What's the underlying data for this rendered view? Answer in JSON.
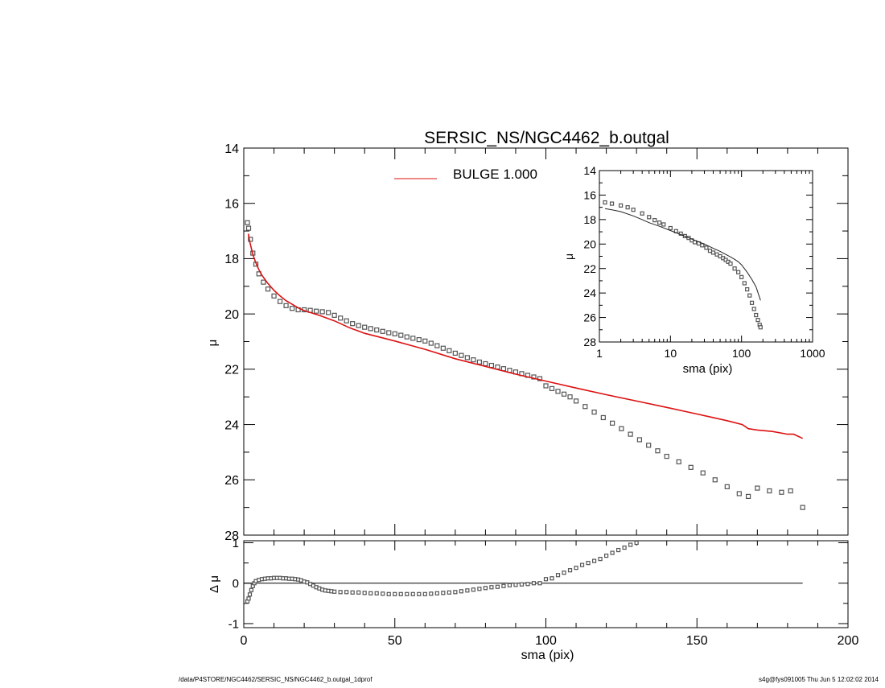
{
  "footer": {
    "left": "/data/P4STORE/NGC4462/SERSIC_NS/NGC4462_b.outgal_1dprof",
    "right": "s4g@fys091005  Thu Jun  5 12:02:02 2014"
  },
  "chart_data": [
    {
      "id": "main",
      "type": "scatter",
      "title": "SERSIC_NS/NGC4462_b.outgal",
      "xlabel": "",
      "ylabel": "μ",
      "xlim": [
        0,
        200
      ],
      "ylim": [
        28,
        14
      ],
      "y_inverted": true,
      "xticks": [
        0,
        50,
        100,
        150,
        200
      ],
      "yticks": [
        14,
        16,
        18,
        20,
        22,
        24,
        26,
        28
      ],
      "yticklabels": [
        "14",
        "16",
        "18",
        "20",
        "22",
        "24",
        "26",
        "28"
      ],
      "legend": {
        "placement": "top-center",
        "entries": [
          {
            "label": "BULGE  1.000",
            "color": "#dd1111"
          }
        ]
      },
      "series": [
        {
          "name": "",
          "kind": "points",
          "color": "#555555",
          "x": [
            1.2,
            1.6,
            2.2,
            3,
            4,
            5,
            6.5,
            8,
            10,
            12,
            14,
            16,
            18,
            20,
            22,
            24,
            26,
            28,
            30,
            32,
            34,
            36,
            38,
            40,
            42,
            44,
            46,
            48,
            50,
            52,
            54,
            56,
            58,
            60,
            62,
            64,
            66,
            68,
            70,
            72,
            74,
            76,
            78,
            80,
            82,
            84,
            86,
            88,
            90,
            92,
            94,
            96,
            98,
            100,
            102,
            104,
            106,
            108,
            110,
            113,
            116,
            119,
            122,
            125,
            128,
            131,
            134,
            137,
            140,
            144,
            148,
            152,
            156,
            160,
            164,
            167,
            170,
            174,
            178,
            181,
            185
          ],
          "y": [
            16.7,
            16.9,
            17.3,
            17.8,
            18.2,
            18.55,
            18.85,
            19.1,
            19.35,
            19.55,
            19.7,
            19.8,
            19.85,
            19.85,
            19.87,
            19.9,
            19.92,
            19.95,
            20.05,
            20.15,
            20.25,
            20.35,
            20.42,
            20.48,
            20.53,
            20.58,
            20.63,
            20.68,
            20.72,
            20.77,
            20.83,
            20.88,
            20.93,
            20.98,
            21.06,
            21.15,
            21.24,
            21.33,
            21.42,
            21.5,
            21.58,
            21.66,
            21.74,
            21.8,
            21.86,
            21.92,
            21.98,
            22.04,
            22.1,
            22.16,
            22.22,
            22.28,
            22.34,
            22.6,
            22.7,
            22.8,
            22.9,
            23.0,
            23.15,
            23.35,
            23.55,
            23.75,
            23.95,
            24.15,
            24.35,
            24.55,
            24.75,
            24.95,
            25.15,
            25.35,
            25.55,
            25.75,
            26.0,
            26.25,
            26.5,
            26.6,
            26.3,
            26.4,
            26.45,
            26.4,
            27.0
          ]
        },
        {
          "name": "BULGE  1.000",
          "kind": "line",
          "color": "#dd1111",
          "x": [
            1.5,
            2,
            3,
            4,
            5,
            6,
            8,
            10,
            12,
            14,
            16,
            18,
            20,
            25,
            30,
            35,
            40,
            50,
            60,
            70,
            80,
            90,
            100,
            110,
            120,
            130,
            140,
            150,
            160,
            165,
            167,
            170,
            175,
            180,
            182,
            185
          ],
          "y": [
            17.1,
            17.4,
            17.85,
            18.15,
            18.4,
            18.6,
            18.9,
            19.15,
            19.35,
            19.52,
            19.65,
            19.78,
            19.88,
            20.05,
            20.25,
            20.5,
            20.7,
            20.98,
            21.28,
            21.62,
            21.9,
            22.18,
            22.43,
            22.68,
            22.92,
            23.15,
            23.38,
            23.62,
            23.86,
            24.0,
            24.15,
            24.2,
            24.25,
            24.35,
            24.35,
            24.5
          ]
        }
      ]
    },
    {
      "id": "residual",
      "type": "scatter",
      "title": "",
      "xlabel": "sma (pix)",
      "ylabel": "Δ μ",
      "xlim": [
        0,
        200
      ],
      "ylim": [
        -1.1,
        1.05
      ],
      "xticks": [
        0,
        50,
        100,
        150,
        200
      ],
      "yticks": [
        -1,
        0,
        1
      ],
      "yticklabels": [
        "-1",
        "0",
        "1"
      ],
      "zero_line": {
        "x0": 0,
        "x1": 185,
        "y": 0
      },
      "series": [
        {
          "name": "",
          "kind": "points",
          "color": "#555555",
          "x": [
            1.2,
            1.6,
            2,
            2.5,
            3,
            3.5,
            4,
            5,
            6,
            7,
            8,
            9,
            10,
            11,
            12,
            13,
            14,
            15,
            16,
            17,
            18,
            19,
            20,
            21,
            22,
            23,
            24,
            25,
            26,
            27,
            28,
            29,
            30,
            32,
            34,
            36,
            38,
            40,
            42,
            44,
            46,
            48,
            50,
            52,
            54,
            56,
            58,
            60,
            62,
            64,
            66,
            68,
            70,
            72,
            74,
            76,
            78,
            80,
            82,
            84,
            86,
            88,
            90,
            92,
            94,
            96,
            98,
            100,
            102,
            104,
            106,
            108,
            110,
            112,
            114,
            116,
            118,
            120,
            122,
            124,
            126,
            128,
            130
          ],
          "y": [
            -0.45,
            -0.38,
            -0.28,
            -0.17,
            -0.07,
            0.0,
            0.05,
            0.08,
            0.1,
            0.11,
            0.12,
            0.12,
            0.13,
            0.13,
            0.13,
            0.12,
            0.12,
            0.11,
            0.11,
            0.1,
            0.09,
            0.07,
            0.04,
            0.02,
            -0.02,
            -0.06,
            -0.1,
            -0.13,
            -0.16,
            -0.18,
            -0.19,
            -0.2,
            -0.21,
            -0.22,
            -0.22,
            -0.23,
            -0.23,
            -0.24,
            -0.25,
            -0.25,
            -0.26,
            -0.27,
            -0.27,
            -0.27,
            -0.27,
            -0.27,
            -0.27,
            -0.27,
            -0.26,
            -0.25,
            -0.24,
            -0.23,
            -0.22,
            -0.2,
            -0.18,
            -0.16,
            -0.14,
            -0.12,
            -0.1,
            -0.09,
            -0.07,
            -0.05,
            -0.04,
            -0.03,
            -0.02,
            0.0,
            0.0,
            0.1,
            0.12,
            0.2,
            0.26,
            0.32,
            0.38,
            0.45,
            0.5,
            0.55,
            0.6,
            0.68,
            0.75,
            0.82,
            0.88,
            0.95,
            1.0
          ]
        }
      ]
    },
    {
      "id": "inset",
      "type": "scatter",
      "title": "",
      "xlabel": "sma (pix)",
      "ylabel": "μ",
      "xscale": "log",
      "xlim": [
        1,
        1000
      ],
      "ylim": [
        28,
        14
      ],
      "y_inverted": true,
      "xticks": [
        1,
        10,
        100,
        1000
      ],
      "xticklabels": [
        "1",
        "10",
        "100",
        "1000"
      ],
      "yticks": [
        14,
        16,
        18,
        20,
        22,
        24,
        26,
        28
      ],
      "yticklabels": [
        "14",
        "16",
        "18",
        "20",
        "22",
        "24",
        "26",
        "28"
      ],
      "series": [
        {
          "name": "",
          "kind": "points",
          "color": "#555555",
          "x": [
            1.2,
            1.5,
            2,
            2.5,
            3,
            4,
            5,
            6,
            7,
            8,
            10,
            12,
            14,
            16,
            18,
            20,
            22,
            25,
            28,
            32,
            36,
            40,
            45,
            50,
            55,
            60,
            65,
            70,
            80,
            90,
            100,
            110,
            120,
            130,
            140,
            150,
            160,
            170,
            180,
            185
          ],
          "y": [
            16.6,
            16.7,
            16.85,
            17.0,
            17.2,
            17.5,
            17.8,
            18.05,
            18.25,
            18.4,
            18.7,
            18.95,
            19.15,
            19.35,
            19.5,
            19.7,
            19.85,
            19.95,
            20.1,
            20.3,
            20.55,
            20.7,
            20.85,
            21.0,
            21.15,
            21.3,
            21.45,
            21.6,
            22.0,
            22.3,
            22.7,
            23.2,
            23.7,
            24.2,
            24.8,
            25.3,
            25.8,
            26.2,
            26.6,
            26.8
          ]
        },
        {
          "name": "",
          "kind": "line",
          "color": "#222222",
          "x": [
            1.2,
            1.5,
            2,
            3,
            4,
            5,
            7,
            10,
            15,
            20,
            30,
            40,
            50,
            60,
            70,
            80,
            90,
            100,
            120,
            140,
            160,
            185
          ],
          "y": [
            17.1,
            17.2,
            17.35,
            17.7,
            18.0,
            18.25,
            18.55,
            18.9,
            19.3,
            19.6,
            20.0,
            20.35,
            20.6,
            20.85,
            21.05,
            21.25,
            21.45,
            21.7,
            22.3,
            22.9,
            23.5,
            24.6
          ]
        }
      ]
    }
  ]
}
